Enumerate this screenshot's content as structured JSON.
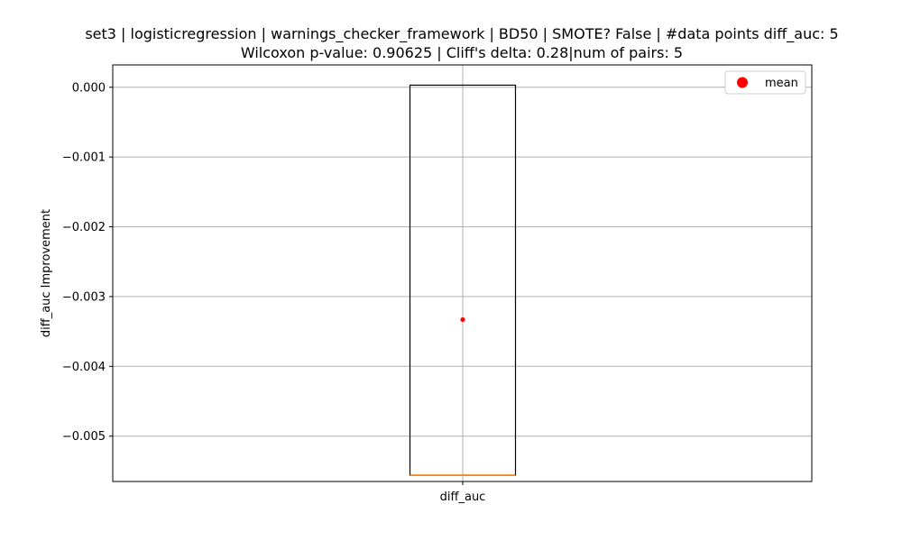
{
  "chart_data": {
    "type": "box",
    "title_line1": "set3 | logisticregression | warnings_checker_framework | BD50 | SMOTE? False | #data points diff_auc: 5",
    "title_line2": "Wilcoxon p-value: 0.90625 | Cliff's delta: 0.28|num of pairs: 5",
    "xlabel": "",
    "ylabel": "diff_auc Improvement",
    "categories": [
      "diff_auc"
    ],
    "ylim": [
      -0.00565,
      0.00032
    ],
    "yticks": [
      0.0,
      -0.001,
      -0.002,
      -0.003,
      -0.004,
      -0.005
    ],
    "ytick_labels": [
      "0.000",
      "−0.001",
      "−0.002",
      "−0.003",
      "−0.004",
      "−0.005"
    ],
    "grid": true,
    "legend": {
      "placement": "top-right",
      "entries": [
        {
          "label": "mean",
          "marker": "circle",
          "color": "#ff0000"
        }
      ]
    },
    "box": {
      "q1": -0.00556,
      "median": -0.00556,
      "q3": 3e-05,
      "whisker_low": -0.00556,
      "whisker_high": 3e-05,
      "mean": -0.00333
    },
    "colors": {
      "box": "#000000",
      "median": "#ff7f0e",
      "mean": "#ff0000",
      "grid": "#b0b0b0"
    }
  }
}
